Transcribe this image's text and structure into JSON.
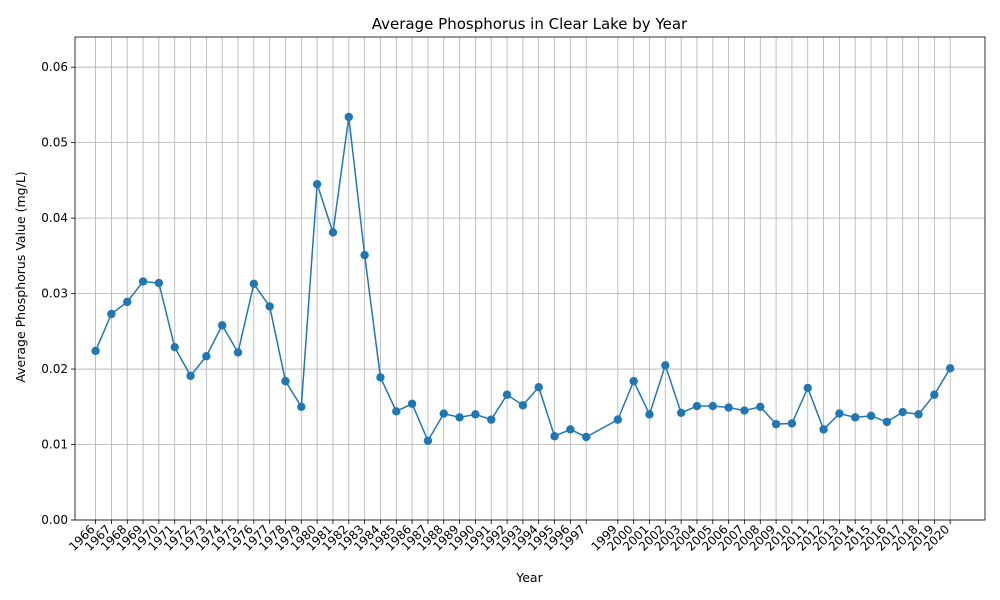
{
  "chart_data": {
    "type": "line",
    "title": "Average Phosphorus in Clear Lake by Year",
    "xlabel": "Year",
    "ylabel": "Average Phosphorus Value (mg/L)",
    "ylim": [
      0,
      0.064
    ],
    "yticks": [
      "0.00",
      "0.01",
      "0.02",
      "0.03",
      "0.04",
      "0.05",
      "0.06"
    ],
    "xlim": [
      1964.7,
      2022.2
    ],
    "grid": true,
    "marker": "circle",
    "line_color": "#1f77b4",
    "x": [
      1966,
      1967,
      1968,
      1969,
      1970,
      1971,
      1972,
      1973,
      1974,
      1975,
      1976,
      1977,
      1978,
      1979,
      1980,
      1981,
      1982,
      1983,
      1984,
      1985,
      1986,
      1987,
      1988,
      1989,
      1990,
      1991,
      1992,
      1993,
      1994,
      1995,
      1996,
      1997,
      1999,
      2000,
      2001,
      2002,
      2003,
      2004,
      2005,
      2006,
      2007,
      2008,
      2009,
      2010,
      2011,
      2012,
      2013,
      2014,
      2015,
      2016,
      2017,
      2018,
      2019,
      2020
    ],
    "y": [
      0.0224,
      0.0273,
      0.0289,
      0.0316,
      0.0314,
      0.0229,
      0.0191,
      0.0217,
      0.0258,
      0.0222,
      0.0313,
      0.0283,
      0.0184,
      0.015,
      0.0445,
      0.0381,
      0.0534,
      0.0351,
      0.0189,
      0.0144,
      0.0154,
      0.0105,
      0.0141,
      0.0136,
      0.014,
      0.0133,
      0.0166,
      0.0152,
      0.0176,
      0.0111,
      0.012,
      0.011,
      0.0133,
      0.0184,
      0.014,
      0.0205,
      0.0142,
      0.0151,
      0.0151,
      0.0149,
      0.0145,
      0.015,
      0.0127,
      0.0128,
      0.0175,
      0.012,
      0.0141,
      0.0136,
      0.0138,
      0.013,
      0.0143,
      0.014,
      0.0166,
      0.0201
    ]
  }
}
